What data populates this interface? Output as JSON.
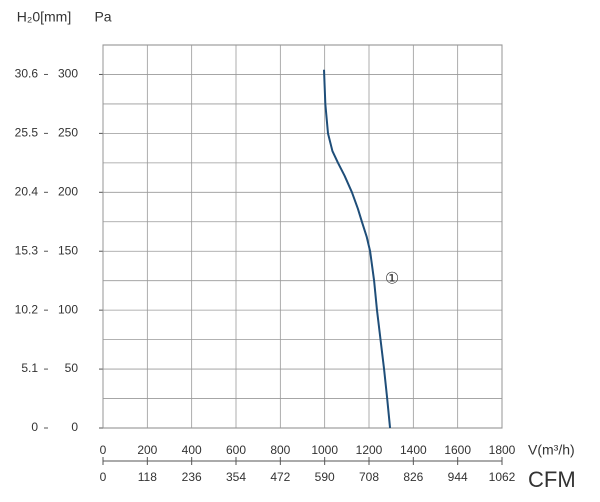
{
  "chart_data": {
    "type": "line",
    "y_label": "Pa",
    "y2_label": "H₂0[mm]",
    "x_label": "V(m³/h)",
    "x2_label": "CFM",
    "annotation": {
      "text": "①",
      "x": 1304,
      "y": 126
    },
    "xlim": [
      0,
      1800
    ],
    "xticks": [
      0,
      200,
      400,
      600,
      800,
      1000,
      1200,
      1400,
      1600,
      1800
    ],
    "x2lim": [
      0,
      1062
    ],
    "x2ticks": [
      0,
      118,
      236,
      354,
      472,
      590,
      708,
      826,
      944,
      1062
    ],
    "ylim": [
      0,
      325
    ],
    "yticks": [
      0,
      50,
      100,
      150,
      200,
      250,
      300
    ],
    "y2lim": [
      0,
      33.15
    ],
    "y2ticks": [
      0,
      5.1,
      10.2,
      15.3,
      20.4,
      25.5,
      30.6
    ],
    "grid": true,
    "minor_grid_step": 25,
    "series": [
      {
        "color": "#1f4e79",
        "x": [
          997,
          1003,
          1015,
          1035,
          1060,
          1090,
          1123,
          1150,
          1168,
          1190,
          1205,
          1223,
          1236,
          1252,
          1268,
          1282,
          1295
        ],
        "values": [
          304,
          275,
          250,
          235,
          225,
          214,
          200,
          186,
          175,
          162,
          150,
          125,
          100,
          75,
          50,
          25,
          0
        ]
      }
    ]
  }
}
